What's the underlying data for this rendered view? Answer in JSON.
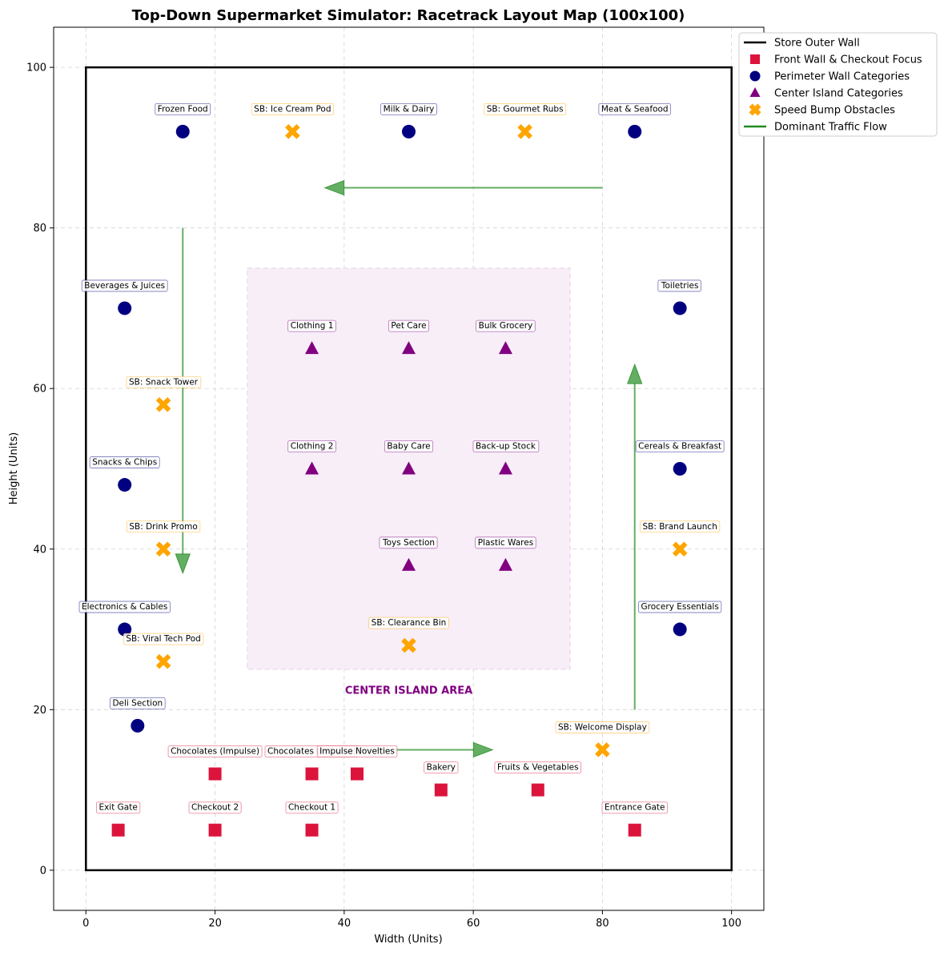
{
  "chart_data": {
    "type": "scatter",
    "title": "Top-Down Supermarket Simulator: Racetrack Layout Map (100x100)",
    "xlabel": "Width (Units)",
    "ylabel": "Height (Units)",
    "xlim": [
      -5,
      105
    ],
    "ylim": [
      -5,
      105
    ],
    "xticks": [
      0,
      20,
      40,
      60,
      80,
      100
    ],
    "yticks": [
      0,
      20,
      40,
      60,
      80,
      100
    ],
    "grid": true,
    "legend_position": "upper-right-outside",
    "colors": {
      "wall": "#000000",
      "front": "#dc143c",
      "perimeter": "#000080",
      "center": "#800080",
      "speed_bump": "#ffa500",
      "flow": "#228b22",
      "island_fill": "#f7eef7",
      "grid": "#d3d3d3"
    },
    "legend": [
      {
        "key": "wall",
        "label": "Store Outer Wall",
        "marker": "line"
      },
      {
        "key": "front",
        "label": "Front Wall & Checkout Focus",
        "marker": "square"
      },
      {
        "key": "perimeter",
        "label": "Perimeter Wall Categories",
        "marker": "circle"
      },
      {
        "key": "center",
        "label": "Center Island Categories",
        "marker": "triangle"
      },
      {
        "key": "speed_bump",
        "label": "Speed Bump Obstacles",
        "marker": "x"
      },
      {
        "key": "flow",
        "label": "Dominant Traffic Flow",
        "marker": "line"
      }
    ],
    "store_wall": {
      "x0": 0,
      "y0": 0,
      "x1": 100,
      "y1": 100
    },
    "center_island": {
      "x0": 25,
      "y0": 25,
      "x1": 75,
      "y1": 75,
      "label": "CENTER ISLAND AREA",
      "label_x": 50,
      "label_y": 22.5
    },
    "series": [
      {
        "key": "front",
        "marker": "square",
        "points": [
          {
            "x": 85,
            "y": 5,
            "label": "Entrance Gate"
          },
          {
            "x": 5,
            "y": 5,
            "label": "Exit Gate"
          },
          {
            "x": 35,
            "y": 5,
            "label": "Checkout 1"
          },
          {
            "x": 20,
            "y": 5,
            "label": "Checkout 2"
          },
          {
            "x": 20,
            "y": 12,
            "label": "Chocolates (Impulse)"
          },
          {
            "x": 35,
            "y": 12,
            "label": "Chocolates (Impulse)"
          },
          {
            "x": 42,
            "y": 12,
            "label": "Impulse Novelties"
          },
          {
            "x": 55,
            "y": 10,
            "label": "Bakery"
          },
          {
            "x": 70,
            "y": 10,
            "label": "Fruits & Vegetables"
          }
        ]
      },
      {
        "key": "perimeter",
        "marker": "circle",
        "points": [
          {
            "x": 15,
            "y": 92,
            "label": "Frozen Food"
          },
          {
            "x": 50,
            "y": 92,
            "label": "Milk & Dairy"
          },
          {
            "x": 85,
            "y": 92,
            "label": "Meat & Seafood"
          },
          {
            "x": 6,
            "y": 70,
            "label": "Beverages & Juices"
          },
          {
            "x": 6,
            "y": 48,
            "label": "Snacks & Chips"
          },
          {
            "x": 6,
            "y": 30,
            "label": "Electronics & Cables"
          },
          {
            "x": 8,
            "y": 18,
            "label": "Deli Section"
          },
          {
            "x": 92,
            "y": 70,
            "label": "Toiletries"
          },
          {
            "x": 92,
            "y": 50,
            "label": "Cereals & Breakfast"
          },
          {
            "x": 92,
            "y": 30,
            "label": "Grocery Essentials"
          }
        ]
      },
      {
        "key": "center",
        "marker": "triangle",
        "points": [
          {
            "x": 35,
            "y": 65,
            "label": "Clothing 1"
          },
          {
            "x": 50,
            "y": 65,
            "label": "Pet Care"
          },
          {
            "x": 65,
            "y": 65,
            "label": "Bulk Grocery"
          },
          {
            "x": 35,
            "y": 50,
            "label": "Clothing 2"
          },
          {
            "x": 50,
            "y": 50,
            "label": "Baby Care"
          },
          {
            "x": 65,
            "y": 50,
            "label": "Back-up Stock"
          },
          {
            "x": 50,
            "y": 38,
            "label": "Toys Section"
          },
          {
            "x": 65,
            "y": 38,
            "label": "Plastic Wares"
          }
        ]
      },
      {
        "key": "speed_bump",
        "marker": "x",
        "points": [
          {
            "x": 32,
            "y": 92,
            "label": "SB: Ice Cream Pod"
          },
          {
            "x": 68,
            "y": 92,
            "label": "SB: Gourmet Rubs"
          },
          {
            "x": 12,
            "y": 58,
            "label": "SB: Snack Tower"
          },
          {
            "x": 12,
            "y": 40,
            "label": "SB: Drink Promo"
          },
          {
            "x": 12,
            "y": 26,
            "label": "SB: Viral Tech Pod"
          },
          {
            "x": 50,
            "y": 28,
            "label": "SB: Clearance Bin"
          },
          {
            "x": 92,
            "y": 40,
            "label": "SB: Brand Launch"
          },
          {
            "x": 80,
            "y": 15,
            "label": "SB: Welcome Display"
          }
        ]
      }
    ],
    "flow_arrows": [
      {
        "x0": 85,
        "y0": 20,
        "x1": 85,
        "y1": 63
      },
      {
        "x0": 80,
        "y0": 85,
        "x1": 37,
        "y1": 85
      },
      {
        "x0": 15,
        "y0": 80,
        "x1": 15,
        "y1": 37
      },
      {
        "x0": 40,
        "y0": 15,
        "x1": 63,
        "y1": 15
      }
    ]
  }
}
